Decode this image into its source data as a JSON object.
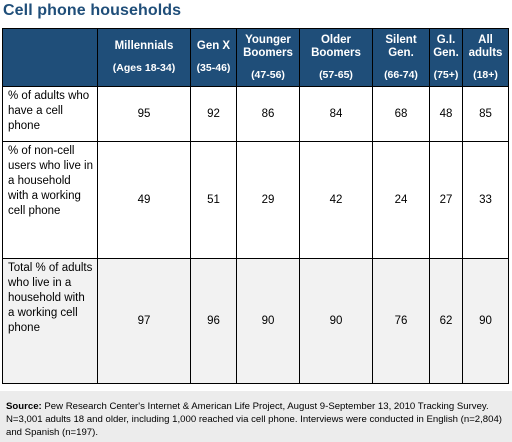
{
  "title": "Cell phone households",
  "columns": [
    {
      "label": "",
      "range": ""
    },
    {
      "label": "Millennials",
      "range": "(Ages 18-34)"
    },
    {
      "label": "Gen X",
      "range": "(35-46)"
    },
    {
      "label": "Younger Boomers",
      "range": "(47-56)"
    },
    {
      "label": "Older Boomers",
      "range": "(57-65)"
    },
    {
      "label": "Silent Gen.",
      "range": "(66-74)"
    },
    {
      "label": "G.I. Gen.",
      "range": "(75+)"
    },
    {
      "label": "All adults",
      "range": "(18+)"
    }
  ],
  "rows": [
    {
      "label": "% of adults who have a cell phone",
      "values": [
        "95",
        "92",
        "86",
        "84",
        "68",
        "48",
        "85"
      ]
    },
    {
      "label": "% of non-cell users who live in a household with a working cell phone",
      "values": [
        "49",
        "51",
        "29",
        "42",
        "24",
        "27",
        "33"
      ]
    },
    {
      "label": "Total % of adults who live in a household with a working cell phone",
      "values": [
        "97",
        "96",
        "90",
        "90",
        "76",
        "62",
        "90"
      ]
    }
  ],
  "source": {
    "prefix": "Source:",
    "text": "Pew Research Center's Internet & American Life Project, August 9-September 13, 2010 Tracking Survey. N=3,001 adults 18 and older, including 1,000 reached via cell phone. Interviews were conducted in English (n=2,804) and Spanish (n=197)."
  },
  "colors": {
    "header_bg": "#1f4e79",
    "title": "#1f4e79",
    "shade": "#f2f2f2",
    "source_bg": "#ececec"
  }
}
